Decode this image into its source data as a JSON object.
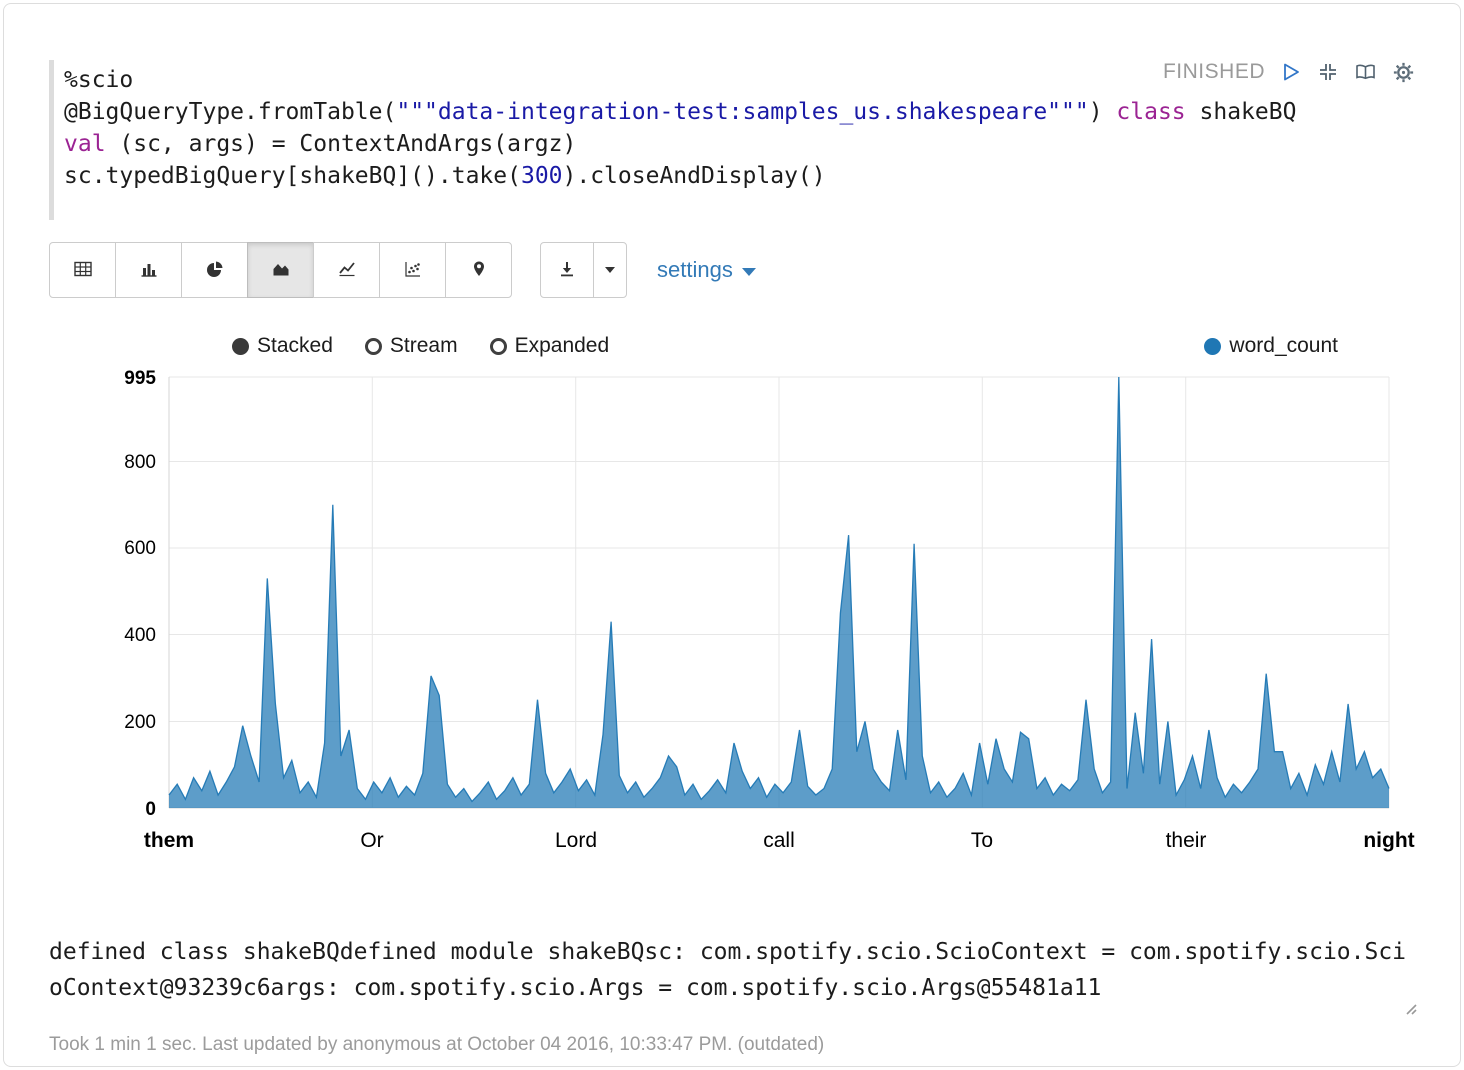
{
  "status": {
    "label": "FINISHED"
  },
  "code": {
    "l1": "%scio",
    "l2_pre": "@BigQueryType.fromTable(",
    "l2_str": "\"\"\"data-integration-test:samples_us.shakespeare\"\"\"",
    "l2_mid": ") ",
    "l2_kw": "class",
    "l2_post": " shakeBQ",
    "l3_kw": "val",
    "l3_rest": " (sc, args) = ContextAndArgs(argz)",
    "l4_pre": "sc.typedBigQuery[shakeBQ]().take(",
    "l4_num": "300",
    "l4_post": ").closeAndDisplay()"
  },
  "toolbar": {
    "settings_label": "settings",
    "active_chart": "area-chart"
  },
  "icons": {
    "status": [
      "play-icon",
      "compress-icon",
      "book-icon",
      "gear-icon"
    ],
    "chart_types": [
      "table-icon",
      "bar-chart-icon",
      "pie-chart-icon",
      "area-chart-icon",
      "line-chart-icon",
      "scatter-chart-icon",
      "map-pin-icon"
    ],
    "export": [
      "download-icon",
      "caret-down-icon"
    ]
  },
  "chart_controls": {
    "items": [
      "Stacked",
      "Stream",
      "Expanded"
    ],
    "active": "Stacked"
  },
  "legend": {
    "label": "word_count"
  },
  "chart_data": {
    "type": "area",
    "title": "",
    "xlabel": "",
    "ylabel": "",
    "ylim": [
      0,
      995
    ],
    "grid": true,
    "legend_position": "top-right",
    "y_ticks": [
      995,
      800,
      600,
      400,
      200,
      0
    ],
    "x_ticks": [
      "them",
      "Or",
      "Lord",
      "call",
      "To",
      "their",
      "night"
    ],
    "series": [
      {
        "name": "word_count",
        "color": "#1f77b4",
        "values": [
          30,
          55,
          20,
          70,
          40,
          85,
          30,
          60,
          95,
          190,
          120,
          60,
          530,
          240,
          70,
          110,
          35,
          60,
          25,
          150,
          700,
          120,
          180,
          45,
          20,
          60,
          35,
          70,
          25,
          50,
          30,
          80,
          305,
          260,
          55,
          25,
          45,
          15,
          35,
          60,
          20,
          40,
          70,
          30,
          55,
          250,
          80,
          35,
          60,
          90,
          40,
          65,
          30,
          170,
          430,
          75,
          35,
          60,
          25,
          45,
          70,
          120,
          95,
          30,
          55,
          20,
          40,
          65,
          35,
          150,
          85,
          45,
          70,
          25,
          55,
          35,
          60,
          180,
          50,
          30,
          45,
          90,
          450,
          630,
          130,
          200,
          90,
          60,
          40,
          180,
          65,
          610,
          120,
          35,
          60,
          25,
          45,
          80,
          30,
          150,
          55,
          160,
          90,
          60,
          175,
          160,
          45,
          70,
          30,
          55,
          40,
          65,
          250,
          90,
          35,
          60,
          995,
          45,
          220,
          80,
          390,
          55,
          200,
          30,
          65,
          120,
          45,
          180,
          70,
          25,
          55,
          35,
          60,
          90,
          310,
          130,
          130,
          45,
          80,
          30,
          100,
          55,
          130,
          60,
          240,
          90,
          130,
          70,
          90,
          45
        ]
      }
    ]
  },
  "output": {
    "text": "defined class shakeBQdefined module shakeBQsc: com.spotify.scio.ScioContext = com.spotify.scio.ScioContext@93239c6args: com.spotify.scio.Args = com.spotify.scio.Args@55481a11"
  },
  "footer": {
    "text": "Took 1 min 1 sec. Last updated by anonymous at October 04 2016, 10:33:47 PM. (outdated)"
  },
  "colors": {
    "accent": "#337ab7",
    "series": "#1f77b4",
    "status_text": "#9a9a9a"
  }
}
